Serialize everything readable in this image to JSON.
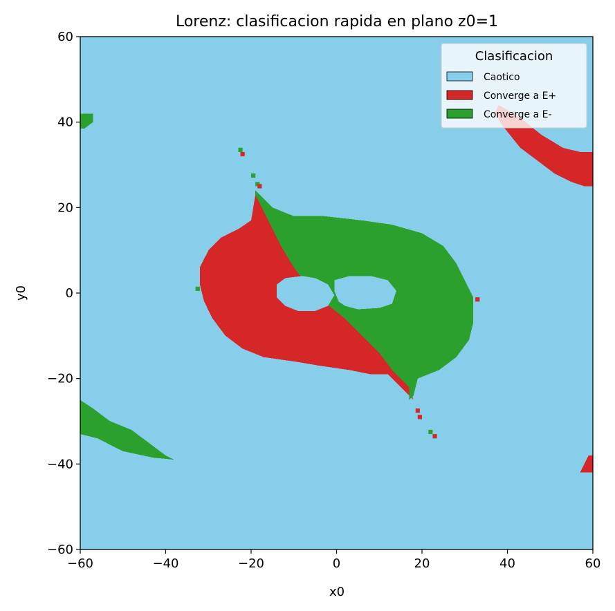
{
  "chart_data": {
    "type": "heatmap",
    "title": "Lorenz: clasificacion rapida en plano z0=1",
    "xlabel": "x0",
    "ylabel": "y0",
    "xlim": [
      -60,
      60
    ],
    "ylim": [
      -60,
      60
    ],
    "xticks": [
      "−60",
      "−40",
      "−20",
      "0",
      "20",
      "40",
      "60"
    ],
    "yticks": [
      "−60",
      "−40",
      "−20",
      "0",
      "20",
      "40",
      "60"
    ],
    "xtick_values": [
      -60,
      -40,
      -20,
      0,
      20,
      40,
      60
    ],
    "ytick_values": [
      -60,
      -40,
      -20,
      0,
      20,
      40,
      60
    ],
    "grid": false,
    "legend": {
      "title": "Clasificacion",
      "placement": "top-right",
      "entries": [
        {
          "label": "Caotico",
          "color": "#87ceeb"
        },
        {
          "label": "Converge a E+",
          "color": "#d62728"
        },
        {
          "label": "Converge a E-",
          "color": "#2ca02c"
        }
      ]
    },
    "background_class": "Caotico",
    "regions": [
      {
        "class": "Converge a E+",
        "color": "#d62728",
        "polygon": [
          [
            -19,
            23
          ],
          [
            -16,
            17
          ],
          [
            -13,
            11
          ],
          [
            -10,
            6
          ],
          [
            -7,
            2
          ],
          [
            -3,
            -2
          ],
          [
            2,
            -6
          ],
          [
            6,
            -10
          ],
          [
            10,
            -14
          ],
          [
            13,
            -18
          ],
          [
            15,
            -20
          ],
          [
            17,
            -22
          ],
          [
            18,
            -25
          ],
          [
            16,
            -23
          ],
          [
            14,
            -21
          ],
          [
            12,
            -19
          ],
          [
            8,
            -19
          ],
          [
            3,
            -18
          ],
          [
            -4,
            -17
          ],
          [
            -10,
            -16
          ],
          [
            -17,
            -15
          ],
          [
            -22,
            -13
          ],
          [
            -26,
            -10
          ],
          [
            -29,
            -6
          ],
          [
            -31,
            -2
          ],
          [
            -32,
            2
          ],
          [
            -32,
            6
          ],
          [
            -30,
            10
          ],
          [
            -27,
            13
          ],
          [
            -23,
            15
          ],
          [
            -20,
            17
          ]
        ]
      },
      {
        "class": "Converge a E-",
        "color": "#2ca02c",
        "polygon": [
          [
            -19,
            24
          ],
          [
            -15,
            20
          ],
          [
            -10,
            18
          ],
          [
            -3,
            18
          ],
          [
            6,
            17
          ],
          [
            13,
            16
          ],
          [
            20,
            14
          ],
          [
            25,
            11
          ],
          [
            28,
            7
          ],
          [
            30,
            3
          ],
          [
            32,
            -1
          ],
          [
            32,
            -7
          ],
          [
            31,
            -11
          ],
          [
            28,
            -15
          ],
          [
            24,
            -18
          ],
          [
            19,
            -20
          ],
          [
            18,
            -24
          ],
          [
            17,
            -25
          ],
          [
            17,
            -22
          ],
          [
            15,
            -20
          ],
          [
            13,
            -18
          ],
          [
            10,
            -14
          ],
          [
            6,
            -10
          ],
          [
            2,
            -6
          ],
          [
            -3,
            -2
          ],
          [
            -7,
            2
          ],
          [
            -10,
            6
          ],
          [
            -13,
            11
          ],
          [
            -16,
            17
          ],
          [
            -19,
            23
          ]
        ]
      },
      {
        "class": "Caotico",
        "color": "#87ceeb",
        "polygon": [
          [
            -14,
            2
          ],
          [
            -12,
            3.5
          ],
          [
            -8,
            4
          ],
          [
            -5,
            3.5
          ],
          [
            -2,
            2
          ],
          [
            -0.5,
            -0.5
          ],
          [
            -2,
            -3
          ],
          [
            -5,
            -4.2
          ],
          [
            -9,
            -4.2
          ],
          [
            -12,
            -3
          ],
          [
            -14,
            -1
          ]
        ]
      },
      {
        "class": "Caotico",
        "color": "#87ceeb",
        "polygon": [
          [
            -0.5,
            3
          ],
          [
            3,
            4
          ],
          [
            8,
            4
          ],
          [
            12,
            3
          ],
          [
            14,
            0.5
          ],
          [
            13,
            -2.5
          ],
          [
            10,
            -3.5
          ],
          [
            5,
            -3.8
          ],
          [
            2,
            -3
          ],
          [
            0.5,
            -2
          ],
          [
            -0.5,
            0.5
          ]
        ]
      },
      {
        "class": "Converge a E+",
        "color": "#d62728",
        "polygon": [
          [
            38,
            44
          ],
          [
            43,
            41
          ],
          [
            48,
            37
          ],
          [
            53,
            34
          ],
          [
            57,
            33
          ],
          [
            60,
            33
          ],
          [
            60,
            25
          ],
          [
            58,
            25
          ],
          [
            55,
            26
          ],
          [
            51,
            28
          ],
          [
            47,
            31
          ],
          [
            43,
            34
          ],
          [
            39,
            39
          ],
          [
            37,
            42
          ]
        ]
      },
      {
        "class": "Converge a E+",
        "color": "#d62728",
        "polygon": [
          [
            57,
            -42
          ],
          [
            60,
            -42
          ],
          [
            60,
            -38
          ],
          [
            59,
            -38
          ]
        ]
      },
      {
        "class": "Converge a E-",
        "color": "#2ca02c",
        "polygon": [
          [
            -60,
            42
          ],
          [
            -57,
            42
          ],
          [
            -57,
            40
          ],
          [
            -59,
            38.5
          ],
          [
            -60,
            38.5
          ]
        ]
      },
      {
        "class": "Converge a E-",
        "color": "#2ca02c",
        "polygon": [
          [
            -60,
            -25
          ],
          [
            -57,
            -27
          ],
          [
            -53,
            -30
          ],
          [
            -48,
            -32
          ],
          [
            -44,
            -35
          ],
          [
            -40,
            -38
          ],
          [
            -38,
            -39
          ],
          [
            -43,
            -38.5
          ],
          [
            -50,
            -37
          ],
          [
            -56,
            -34
          ],
          [
            -60,
            -33
          ]
        ]
      }
    ],
    "speckles": [
      {
        "class": "Converge a E-",
        "color": "#2ca02c",
        "points": [
          [
            -22.5,
            33.5
          ],
          [
            -19.5,
            27.5
          ],
          [
            -32.5,
            1
          ],
          [
            22,
            -32.5
          ],
          [
            -18.5,
            25.5
          ]
        ]
      },
      {
        "class": "Converge a E+",
        "color": "#d62728",
        "points": [
          [
            -22,
            32.5
          ],
          [
            -18,
            25
          ],
          [
            33,
            -1.5
          ],
          [
            23,
            -33.5
          ],
          [
            19,
            -27.5
          ],
          [
            19.5,
            -29
          ]
        ]
      }
    ]
  }
}
